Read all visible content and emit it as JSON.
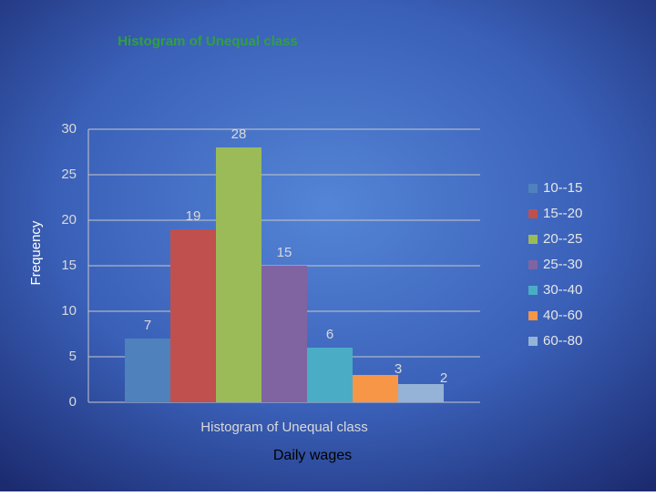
{
  "chart_data": {
    "type": "bar",
    "title": "Histogram of Unequal class",
    "xlabel": "Daily wages",
    "ylabel": "Frequency",
    "categories": [
      "Histogram of Unequal class"
    ],
    "series": [
      {
        "name": "10--15",
        "color": "#4f81bd",
        "values": [
          7
        ]
      },
      {
        "name": "15--20",
        "color": "#c0504d",
        "values": [
          19
        ]
      },
      {
        "name": "20--25",
        "color": "#9bbb59",
        "values": [
          28
        ]
      },
      {
        "name": "25--30",
        "color": "#8064a2",
        "values": [
          15
        ]
      },
      {
        "name": "30--40",
        "color": "#4bacc6",
        "values": [
          6
        ]
      },
      {
        "name": "40--60",
        "color": "#f79646",
        "values": [
          3
        ]
      },
      {
        "name": "60--80",
        "color": "#95b3d7",
        "values": [
          2
        ]
      }
    ],
    "ylim": [
      0,
      30
    ],
    "yticks": [
      0,
      5,
      10,
      15,
      20,
      25,
      30
    ],
    "grid": true,
    "legend": "right"
  }
}
